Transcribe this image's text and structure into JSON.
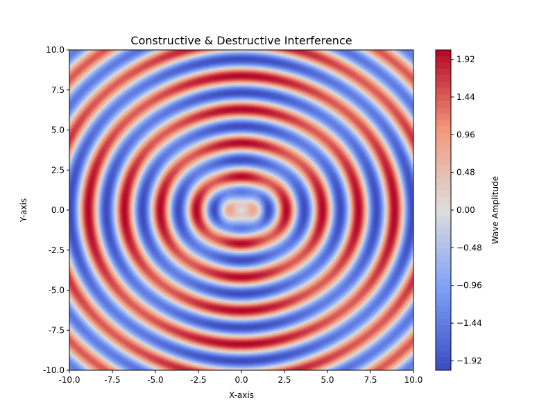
{
  "chart_data": {
    "type": "heatmap",
    "title": "Constructive & Destructive Interference",
    "xlabel": "X-axis",
    "ylabel": "Y-axis",
    "colorbar_label": "Wave Amplitude",
    "xlim": [
      -10,
      10
    ],
    "ylim": [
      -10,
      10
    ],
    "x_ticks": [
      -10.0,
      -7.5,
      -5.0,
      -2.5,
      0.0,
      2.5,
      5.0,
      7.5,
      10.0
    ],
    "y_ticks": [
      -10.0,
      -7.5,
      -5.0,
      -2.5,
      0.0,
      2.5,
      5.0,
      7.5,
      10.0
    ],
    "colorbar_ticks": [
      1.92,
      1.44,
      0.96,
      0.48,
      0.0,
      -0.48,
      -0.96,
      -1.44,
      -1.92
    ],
    "value_range": [
      -2.0,
      2.0
    ],
    "colormap": "coolwarm",
    "colors": {
      "low": "#3b4cc0",
      "mid": "#dddddd",
      "high": "#b40426"
    },
    "grid": false,
    "field": "sin(r)·cos(θ)² + cos(r)·sin(θ)²-style interference of two wave components, amplitude ±2"
  }
}
